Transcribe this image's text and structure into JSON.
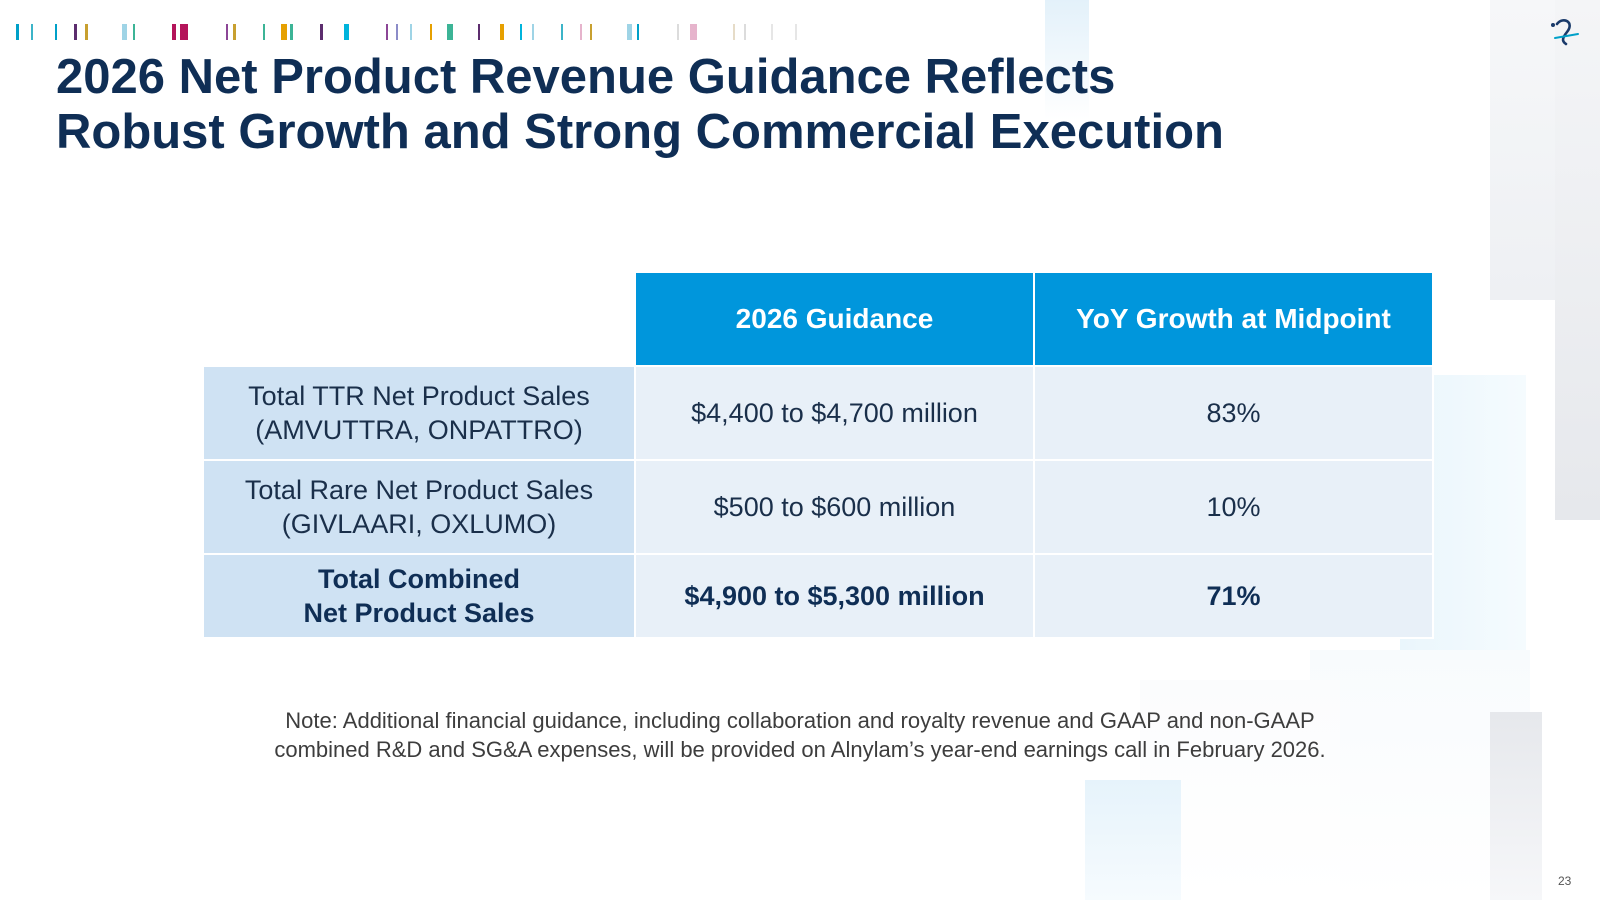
{
  "slide": {
    "title_line1": "2026 Net Product Revenue Guidance Reflects",
    "title_line2": "Robust Growth and Strong Commercial Execution",
    "page_number": "23"
  },
  "table": {
    "headers": [
      "2026 Guidance",
      "YoY Growth at Midpoint"
    ],
    "rows": [
      {
        "label_line1": "Total TTR Net Product Sales",
        "label_line2": "(AMVUTTRA, ONPATTRO)",
        "guidance": "$4,400 to $4,700 million",
        "growth": "83%"
      },
      {
        "label_line1": "Total Rare Net Product Sales",
        "label_line2": "(GIVLAARI, OXLUMO)",
        "guidance": "$500 to $600 million",
        "growth": "10%"
      },
      {
        "label_line1": "Total Combined",
        "label_line2": "Net Product Sales",
        "guidance": "$4,900 to $5,300 million",
        "growth": "71%"
      }
    ]
  },
  "note": {
    "line1": "Note: Additional financial guidance, including collaboration and royalty revenue and GAAP and non-GAAP",
    "line2": "combined R&D and SG&A expenses, will be provided on Alnylam’s year-end earnings call in February 2026."
  },
  "logo": {
    "icon": "alnylam-logo-icon"
  },
  "colors": {
    "title": "#0f2e55",
    "header_bg": "#0096dc",
    "label_bg": "#cfe2f3",
    "value_bg": "#e8f0f8",
    "stripe_palette": [
      "#00a0c8",
      "#5c2d6e",
      "#c8a030",
      "#9fd4e6",
      "#b4145a",
      "#8c8cc8",
      "#3cb496",
      "#e6a000",
      "#00b4dc",
      "#8c4696",
      "#e6b4cc",
      "#dcdcdc"
    ]
  }
}
